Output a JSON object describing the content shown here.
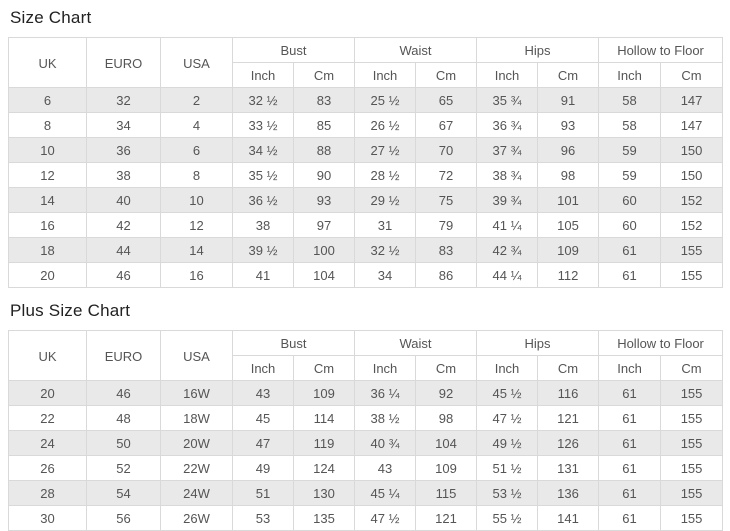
{
  "colors": {
    "row_alt": "#e9e9e9",
    "border": "#d9d9d9",
    "text": "#555555",
    "title": "#222222"
  },
  "tables": [
    {
      "title": "Size Chart",
      "columns_single": [
        "UK",
        "EURO",
        "USA"
      ],
      "columns_grouped": [
        {
          "label": "Bust",
          "sub": [
            "Inch",
            "Cm"
          ]
        },
        {
          "label": "Waist",
          "sub": [
            "Inch",
            "Cm"
          ]
        },
        {
          "label": "Hips",
          "sub": [
            "Inch",
            "Cm"
          ]
        },
        {
          "label": "Hollow to Floor",
          "sub": [
            "Inch",
            "Cm"
          ]
        }
      ],
      "rows": [
        [
          "6",
          "32",
          "2",
          "32 ½",
          "83",
          "25 ½",
          "65",
          "35 ¾",
          "91",
          "58",
          "147"
        ],
        [
          "8",
          "34",
          "4",
          "33 ½",
          "85",
          "26 ½",
          "67",
          "36 ¾",
          "93",
          "58",
          "147"
        ],
        [
          "10",
          "36",
          "6",
          "34 ½",
          "88",
          "27 ½",
          "70",
          "37 ¾",
          "96",
          "59",
          "150"
        ],
        [
          "12",
          "38",
          "8",
          "35 ½",
          "90",
          "28 ½",
          "72",
          "38 ¾",
          "98",
          "59",
          "150"
        ],
        [
          "14",
          "40",
          "10",
          "36 ½",
          "93",
          "29 ½",
          "75",
          "39 ¾",
          "101",
          "60",
          "152"
        ],
        [
          "16",
          "42",
          "12",
          "38",
          "97",
          "31",
          "79",
          "41 ¼",
          "105",
          "60",
          "152"
        ],
        [
          "18",
          "44",
          "14",
          "39 ½",
          "100",
          "32 ½",
          "83",
          "42 ¾",
          "109",
          "61",
          "155"
        ],
        [
          "20",
          "46",
          "16",
          "41",
          "104",
          "34",
          "86",
          "44 ¼",
          "112",
          "61",
          "155"
        ]
      ]
    },
    {
      "title": "Plus Size Chart",
      "columns_single": [
        "UK",
        "EURO",
        "USA"
      ],
      "columns_grouped": [
        {
          "label": "Bust",
          "sub": [
            "Inch",
            "Cm"
          ]
        },
        {
          "label": "Waist",
          "sub": [
            "Inch",
            "Cm"
          ]
        },
        {
          "label": "Hips",
          "sub": [
            "Inch",
            "Cm"
          ]
        },
        {
          "label": "Hollow to Floor",
          "sub": [
            "Inch",
            "Cm"
          ]
        }
      ],
      "rows": [
        [
          "20",
          "46",
          "16W",
          "43",
          "109",
          "36 ¼",
          "92",
          "45 ½",
          "116",
          "61",
          "155"
        ],
        [
          "22",
          "48",
          "18W",
          "45",
          "114",
          "38 ½",
          "98",
          "47 ½",
          "121",
          "61",
          "155"
        ],
        [
          "24",
          "50",
          "20W",
          "47",
          "119",
          "40 ¾",
          "104",
          "49 ½",
          "126",
          "61",
          "155"
        ],
        [
          "26",
          "52",
          "22W",
          "49",
          "124",
          "43",
          "109",
          "51 ½",
          "131",
          "61",
          "155"
        ],
        [
          "28",
          "54",
          "24W",
          "51",
          "130",
          "45 ¼",
          "115",
          "53 ½",
          "136",
          "61",
          "155"
        ],
        [
          "30",
          "56",
          "26W",
          "53",
          "135",
          "47 ½",
          "121",
          "55 ½",
          "141",
          "61",
          "155"
        ]
      ]
    }
  ]
}
